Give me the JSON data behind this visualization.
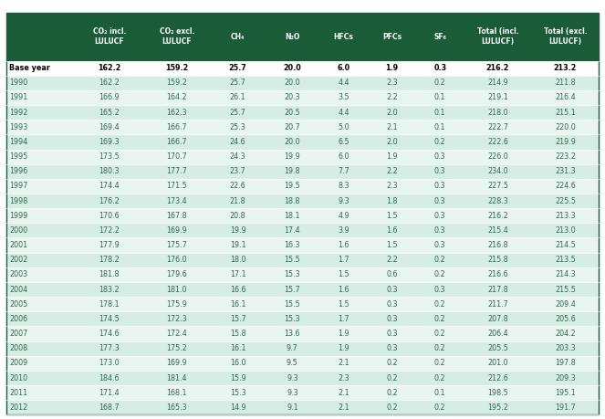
{
  "header_bg": "#1a5c38",
  "header_text_color": "#ffffff",
  "row_colors": [
    "#d6ede6",
    "#e8f5f0"
  ],
  "base_year_bg": "#ffffff",
  "text_color_data": "#2e6e4e",
  "columns": [
    "CO₂ incl.\nLULUCF",
    "CO₂ excl.\nLULUCF",
    "CH₄",
    "N₂O",
    "HFCs",
    "PFCs",
    "SF₆",
    "Total (incl.\nLULUCF)",
    "Total (excl.\nLULUCF)"
  ],
  "row_labels": [
    "Base year",
    "1990",
    "1991",
    "1992",
    "1993",
    "1994",
    "1995",
    "1996",
    "1997",
    "1998",
    "1999",
    "2000",
    "2001",
    "2002",
    "2003",
    "2004",
    "2005",
    "2006",
    "2007",
    "2008",
    "2009",
    "2010",
    "2011",
    "2012"
  ],
  "data": [
    [
      162.2,
      159.2,
      25.7,
      20.0,
      6.0,
      1.9,
      0.3,
      216.2,
      213.2
    ],
    [
      162.2,
      159.2,
      25.7,
      20.0,
      4.4,
      2.3,
      0.2,
      214.9,
      211.8
    ],
    [
      166.9,
      164.2,
      26.1,
      20.3,
      3.5,
      2.2,
      0.1,
      219.1,
      216.4
    ],
    [
      165.2,
      162.3,
      25.7,
      20.5,
      4.4,
      2.0,
      0.1,
      218.0,
      215.1
    ],
    [
      169.4,
      166.7,
      25.3,
      20.7,
      5.0,
      2.1,
      0.1,
      222.7,
      220.0
    ],
    [
      169.3,
      166.7,
      24.6,
      20.0,
      6.5,
      2.0,
      0.2,
      222.6,
      219.9
    ],
    [
      173.5,
      170.7,
      24.3,
      19.9,
      6.0,
      1.9,
      0.3,
      226.0,
      223.2
    ],
    [
      180.3,
      177.7,
      23.7,
      19.8,
      7.7,
      2.2,
      0.3,
      234.0,
      231.3
    ],
    [
      174.4,
      171.5,
      22.6,
      19.5,
      8.3,
      2.3,
      0.3,
      227.5,
      224.6
    ],
    [
      176.2,
      173.4,
      21.8,
      18.8,
      9.3,
      1.8,
      0.3,
      228.3,
      225.5
    ],
    [
      170.6,
      167.8,
      20.8,
      18.1,
      4.9,
      1.5,
      0.3,
      216.2,
      213.3
    ],
    [
      172.2,
      169.9,
      19.9,
      17.4,
      3.9,
      1.6,
      0.3,
      215.4,
      213.0
    ],
    [
      177.9,
      175.7,
      19.1,
      16.3,
      1.6,
      1.5,
      0.3,
      216.8,
      214.5
    ],
    [
      178.2,
      176.0,
      18.0,
      15.5,
      1.7,
      2.2,
      0.2,
      215.8,
      213.5
    ],
    [
      181.8,
      179.6,
      17.1,
      15.3,
      1.5,
      0.6,
      0.2,
      216.6,
      214.3
    ],
    [
      183.2,
      181.0,
      16.6,
      15.7,
      1.6,
      0.3,
      0.3,
      217.8,
      215.5
    ],
    [
      178.1,
      175.9,
      16.1,
      15.5,
      1.5,
      0.3,
      0.2,
      211.7,
      209.4
    ],
    [
      174.5,
      172.3,
      15.7,
      15.3,
      1.7,
      0.3,
      0.2,
      207.8,
      205.6
    ],
    [
      174.6,
      172.4,
      15.8,
      13.6,
      1.9,
      0.3,
      0.2,
      206.4,
      204.2
    ],
    [
      177.3,
      175.2,
      16.1,
      9.7,
      1.9,
      0.3,
      0.2,
      205.5,
      203.3
    ],
    [
      173.0,
      169.9,
      16.0,
      9.5,
      2.1,
      0.2,
      0.2,
      201.0,
      197.8
    ],
    [
      184.6,
      181.4,
      15.9,
      9.3,
      2.3,
      0.2,
      0.2,
      212.6,
      209.3
    ],
    [
      171.4,
      168.1,
      15.3,
      9.3,
      2.1,
      0.2,
      0.1,
      198.5,
      195.1
    ],
    [
      168.7,
      165.3,
      14.9,
      9.1,
      2.1,
      0.2,
      0.2,
      195.2,
      191.7
    ]
  ]
}
